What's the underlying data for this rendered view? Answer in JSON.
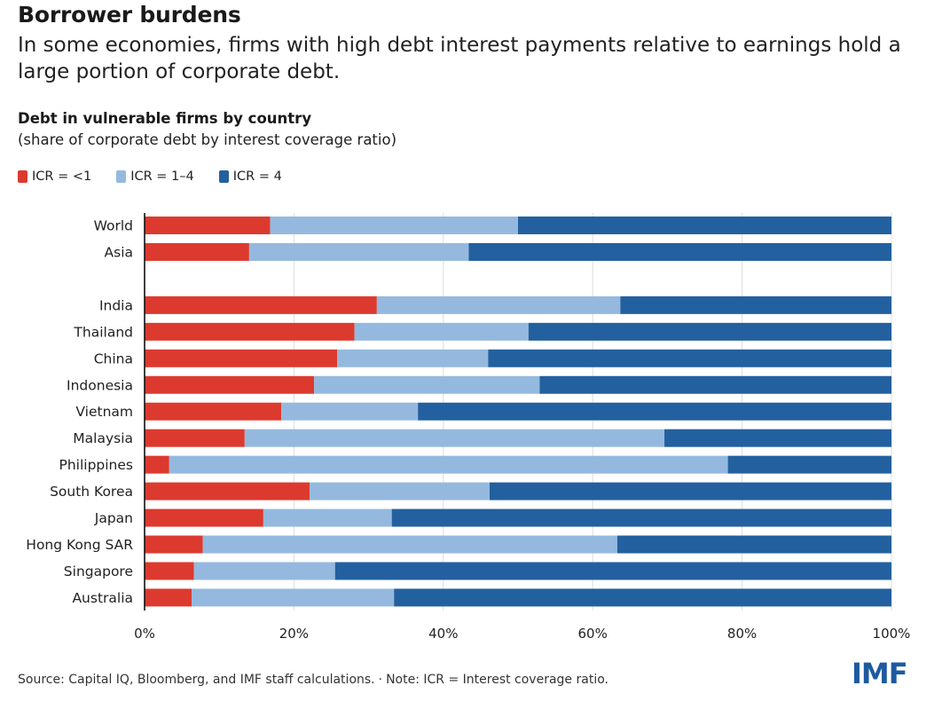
{
  "header": {
    "title": "Borrower burdens",
    "subtitle": "In some economies, firms with high debt interest payments relative to earnings hold a large portion of corporate debt."
  },
  "chart_header": {
    "title": "Debt in vulnerable firms by country",
    "subtitle": "(share of corporate debt by interest coverage ratio)"
  },
  "colors": {
    "low": "#dc3a2f",
    "mid": "#95b9de",
    "high": "#23609f",
    "grid": "#dddddd",
    "axis": "#111111"
  },
  "chart_data": {
    "type": "bar",
    "orientation": "horizontal",
    "stacked": true,
    "categories": [
      "World",
      "Asia",
      "",
      "India",
      "Thailand",
      "China",
      "Indonesia",
      "Vietnam",
      "Malaysia",
      "Philippines",
      "South Korea",
      "Japan",
      "Hong Kong SAR",
      "Singapore",
      "Australia"
    ],
    "series": [
      {
        "name": "ICR = <1",
        "color": "#dc3a2f",
        "values": [
          16.8,
          14,
          null,
          31.1,
          28.1,
          25.8,
          22.7,
          18.3,
          13.4,
          3.3,
          22.1,
          15.9,
          7.8,
          6.6,
          6.3
        ]
      },
      {
        "name": "ICR = 1–4",
        "color": "#95b9de",
        "values": [
          33.2,
          29.4,
          null,
          32.6,
          23.3,
          20.2,
          30.2,
          18.3,
          56.2,
          74.8,
          24.1,
          17.2,
          55.5,
          18.9,
          27.1
        ]
      },
      {
        "name": "ICR = 4",
        "color": "#23609f",
        "values": [
          50.0,
          56.6,
          null,
          36.3,
          48.6,
          54.0,
          47.1,
          63.4,
          30.4,
          21.9,
          53.8,
          66.9,
          36.7,
          74.5,
          66.6
        ]
      }
    ],
    "xlim": [
      0,
      100
    ],
    "x_ticks": [
      "0%",
      "20%",
      "40%",
      "60%",
      "80%",
      "100%"
    ],
    "x_tick_values": [
      0,
      20,
      40,
      60,
      80,
      100
    ],
    "grid": true,
    "legend_position": "top-left"
  },
  "footer": {
    "source": "Source: Capital IQ, Bloomberg, and IMF staff calculations.",
    "separator": "·",
    "note": "Note: ICR = Interest coverage ratio."
  },
  "logo": {
    "text": "IMF"
  }
}
